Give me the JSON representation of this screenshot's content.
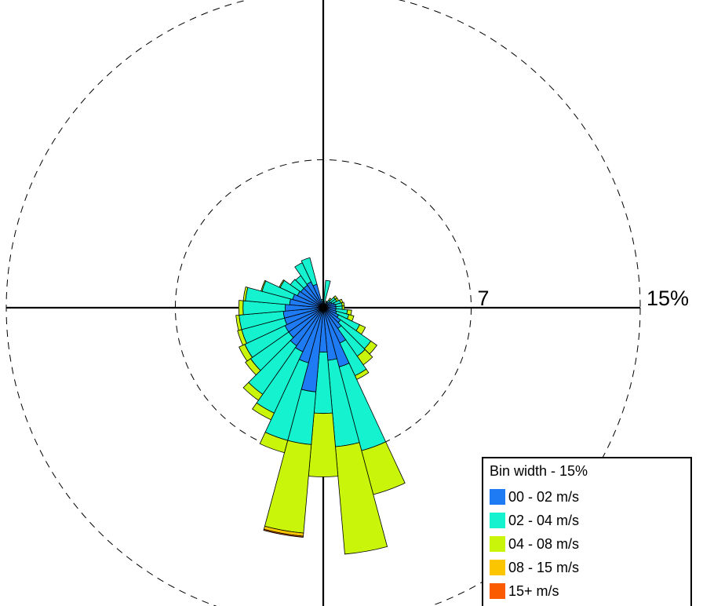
{
  "chart_data": {
    "type": "windrose",
    "rings": [
      {
        "value": 7,
        "label": "7"
      },
      {
        "value": 15,
        "label": "15%"
      }
    ],
    "direction_step_deg": 10,
    "legend": {
      "title": "Bin width - 15%",
      "colors": [
        "#1e7bf4",
        "#14f2d0",
        "#c8f50a",
        "#fbc500",
        "#fa5a00"
      ],
      "labels": [
        "00 - 02 m/s",
        "02 - 04 m/s",
        "04 - 08 m/s",
        "08 - 15 m/s",
        "15+ m/s"
      ]
    },
    "directions": [
      {
        "deg": 0,
        "values": [
          0.15,
          0.1,
          0.0,
          0,
          0
        ]
      },
      {
        "deg": 10,
        "values": [
          0.3,
          1.0,
          0.0,
          0,
          0
        ]
      },
      {
        "deg": 20,
        "values": [
          0.15,
          0.05,
          0.0,
          0,
          0
        ]
      },
      {
        "deg": 30,
        "values": [
          0.2,
          0.1,
          0.05,
          0,
          0
        ]
      },
      {
        "deg": 40,
        "values": [
          0.3,
          0.15,
          0.1,
          0,
          0
        ]
      },
      {
        "deg": 50,
        "values": [
          0.4,
          0.3,
          0.1,
          0,
          0
        ]
      },
      {
        "deg": 60,
        "values": [
          0.45,
          0.25,
          0.1,
          0,
          0
        ]
      },
      {
        "deg": 70,
        "values": [
          0.55,
          0.3,
          0.1,
          0,
          0
        ]
      },
      {
        "deg": 80,
        "values": [
          0.6,
          0.3,
          0.1,
          0,
          0
        ]
      },
      {
        "deg": 90,
        "values": [
          0.6,
          0.3,
          0.1,
          0,
          0
        ]
      },
      {
        "deg": 100,
        "values": [
          0.6,
          0.55,
          0.2,
          0,
          0
        ]
      },
      {
        "deg": 110,
        "values": [
          0.65,
          0.6,
          0.25,
          0,
          0
        ]
      },
      {
        "deg": 120,
        "values": [
          0.8,
          1.1,
          0.3,
          0,
          0
        ]
      },
      {
        "deg": 130,
        "values": [
          1.0,
          1.75,
          0.35,
          0,
          0
        ]
      },
      {
        "deg": 140,
        "values": [
          1.2,
          1.6,
          0.5,
          0,
          0
        ]
      },
      {
        "deg": 150,
        "values": [
          1.85,
          1.7,
          0.2,
          0,
          0
        ]
      },
      {
        "deg": 160,
        "values": [
          2.9,
          4.1,
          2.15,
          0,
          0
        ]
      },
      {
        "deg": 170,
        "values": [
          2.5,
          4.1,
          5.1,
          0,
          0
        ]
      },
      {
        "deg": 180,
        "values": [
          2.1,
          2.9,
          3.0,
          0,
          0
        ]
      },
      {
        "deg": 190,
        "values": [
          4.0,
          2.5,
          4.2,
          0.15,
          0.05
        ]
      },
      {
        "deg": 200,
        "values": [
          2.7,
          3.8,
          0.6,
          0,
          0
        ]
      },
      {
        "deg": 210,
        "values": [
          2.3,
          3.2,
          0.35,
          0,
          0
        ]
      },
      {
        "deg": 220,
        "values": [
          2.2,
          2.8,
          0.35,
          0,
          0
        ]
      },
      {
        "deg": 230,
        "values": [
          2.0,
          2.2,
          0.3,
          0,
          0
        ]
      },
      {
        "deg": 240,
        "values": [
          2.0,
          2.1,
          0.3,
          0,
          0
        ]
      },
      {
        "deg": 250,
        "values": [
          1.9,
          2.1,
          0.2,
          0,
          0
        ]
      },
      {
        "deg": 260,
        "values": [
          1.9,
          2.1,
          0.15,
          0,
          0
        ]
      },
      {
        "deg": 270,
        "values": [
          1.8,
          2.0,
          0.2,
          0,
          0
        ]
      },
      {
        "deg": 280,
        "values": [
          1.6,
          2.1,
          0.1,
          0,
          0
        ]
      },
      {
        "deg": 290,
        "values": [
          1.5,
          1.5,
          0.05,
          0,
          0
        ]
      },
      {
        "deg": 300,
        "values": [
          1.35,
          0.9,
          0.05,
          0,
          0
        ]
      },
      {
        "deg": 310,
        "values": [
          1.3,
          0.6,
          0.0,
          0,
          0
        ]
      },
      {
        "deg": 320,
        "values": [
          1.3,
          0.55,
          0.0,
          0,
          0
        ]
      },
      {
        "deg": 330,
        "values": [
          1.35,
          1.0,
          0.0,
          0,
          0
        ]
      },
      {
        "deg": 340,
        "values": [
          1.15,
          1.3,
          0.0,
          0,
          0
        ]
      },
      {
        "deg": 350,
        "values": [
          0.3,
          0.1,
          0.0,
          0,
          0
        ]
      }
    ]
  }
}
